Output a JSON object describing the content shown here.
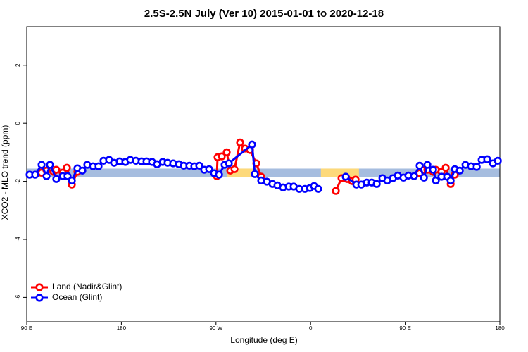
{
  "chart_data": {
    "type": "line",
    "title": "2.5S-2.5N July (Ver 10)   2015-01-01 to 2020-12-18",
    "xlabel": "Longitude (deg E)",
    "ylabel": "XCO2 - MLO trend (ppm)",
    "xlim": [
      90,
      540
    ],
    "ylim": [
      -6.84,
      3.33
    ],
    "xticks": [
      {
        "value": 90,
        "label": "90 E"
      },
      180,
      {
        "value": 270,
        "label": "90 W"
      },
      {
        "value": 360,
        "label": "0"
      },
      {
        "value": 450,
        "label": "90 E"
      },
      {
        "value": 540,
        "label": "180"
      }
    ],
    "yticks": [
      2,
      0,
      -2,
      -4,
      -6
    ],
    "legend": "bottom-left",
    "bands": [
      {
        "color": "#a6bddf",
        "xlim": [
          90,
          540
        ],
        "ylim": [
          -1.84,
          -1.56
        ]
      },
      {
        "color": "#fdd97a",
        "xlim": [
          280.2,
          307
        ],
        "ylim": [
          -1.84,
          -1.56
        ]
      },
      {
        "color": "#fdd97a",
        "xlim": [
          369.8,
          406
        ],
        "ylim": [
          -1.84,
          -1.56
        ]
      }
    ],
    "series": [
      {
        "name": "Land (Nadir&Glint)",
        "color": "#ff0000",
        "x": [
          104.1,
          108.8,
          115.5,
          118.1,
          124.2,
          128.2,
          132.9,
          138.2,
          null,
          270.8,
          271.5,
          275.5,
          280.2,
          283.6,
          287.6,
          292.9,
          297.6,
          302.3,
          308.4,
          313.0,
          null,
          384.0,
          389.4,
          394.8,
          399.4,
          402.8,
          null,
          463.7,
          467.8,
          471.1,
          476.5,
          479.1,
          484.5,
          488.5,
          493.2,
          497.2
        ],
        "values": [
          -1.7,
          -1.63,
          -1.67,
          -1.6,
          -1.7,
          -1.53,
          -2.11,
          -1.67,
          null,
          -1.82,
          -1.17,
          -1.14,
          -1.0,
          -1.63,
          -1.58,
          -0.66,
          -0.87,
          -0.92,
          -1.38,
          -1.84,
          null,
          -2.33,
          -1.89,
          -1.92,
          -1.99,
          -1.94,
          null,
          -1.72,
          -1.6,
          -1.6,
          -1.67,
          -1.6,
          -1.67,
          -1.53,
          -2.09,
          -1.77
        ]
      },
      {
        "name": "Ocean (Glint)",
        "color": "#0000ff",
        "x": [
          92.7,
          98.0,
          104.1,
          108.8,
          112.1,
          118.1,
          124.2,
          128.8,
          132.9,
          138.2,
          142.9,
          147.6,
          153.0,
          158.3,
          163.0,
          168.4,
          173.1,
          178.4,
          183.8,
          188.5,
          193.8,
          199.2,
          203.9,
          209.2,
          213.9,
          219.3,
          224.0,
          229.3,
          234.7,
          239.4,
          244.7,
          249.4,
          254.1,
          258.8,
          263.5,
          268.2,
          272.9,
          278.2,
          282.2,
          304.3,
          307.0,
          313.0,
          318.4,
          323.8,
          328.5,
          333.8,
          339.2,
          343.9,
          349.2,
          354.6,
          359.3,
          363.3,
          367.3,
          null,
          393.4,
          403.5,
          408.2,
          413.5,
          418.2,
          422.9,
          428.3,
          433.0,
          438.3,
          443.0,
          448.3,
          453.0,
          458.4,
          463.7,
          467.8,
          471.1,
          476.5,
          479.1,
          484.5,
          489.9,
          493.2,
          497.2,
          501.9,
          507.3,
          512.6,
          518.0,
          522.7,
          528.0,
          533.4,
          538.1
        ],
        "values": [
          -1.77,
          -1.77,
          -1.43,
          -1.82,
          -1.43,
          -1.92,
          -1.82,
          -1.82,
          -1.97,
          -1.55,
          -1.63,
          -1.43,
          -1.48,
          -1.48,
          -1.29,
          -1.26,
          -1.36,
          -1.31,
          -1.33,
          -1.26,
          -1.29,
          -1.31,
          -1.31,
          -1.33,
          -1.41,
          -1.33,
          -1.36,
          -1.38,
          -1.41,
          -1.46,
          -1.46,
          -1.48,
          -1.46,
          -1.6,
          -1.58,
          -1.72,
          -1.77,
          -1.43,
          -1.38,
          -0.73,
          -1.75,
          -1.97,
          -2.01,
          -2.09,
          -2.14,
          -2.21,
          -2.18,
          -2.18,
          -2.26,
          -2.26,
          -2.23,
          -2.16,
          -2.26,
          null,
          -1.84,
          -2.11,
          -2.11,
          -2.04,
          -2.04,
          -2.09,
          -1.89,
          -1.97,
          -1.89,
          -1.8,
          -1.87,
          -1.8,
          -1.82,
          -1.46,
          -1.87,
          -1.43,
          -1.6,
          -1.97,
          -1.84,
          -1.84,
          -1.97,
          -1.58,
          -1.63,
          -1.43,
          -1.48,
          -1.5,
          -1.26,
          -1.24,
          -1.38,
          -1.29
        ]
      }
    ]
  }
}
